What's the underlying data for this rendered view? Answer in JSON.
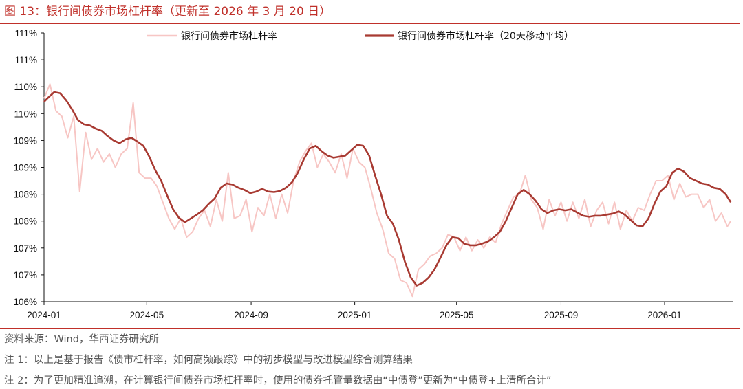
{
  "header": {
    "title": "图 13：银行间债券市场杠杆率（更新至 2026 年 3 月 20 日）"
  },
  "footer": {
    "source": "资料来源：Wind，华西证券研究所",
    "note1": "注 1：以上是基于报告《债市杠杆率，如何高频跟踪》中的初步模型与改进模型综合测算结果",
    "note2": "注 2：为了更加精准追溯，在计算银行间债券市场杠杆率时，使用的债券托管量数据由“中债登”更新为“中债登+上清所合计”"
  },
  "colors": {
    "accent": "#c0302a",
    "daily": "#f7c6c4",
    "ma20": "#a83a32"
  },
  "chart_data": {
    "type": "line",
    "title": "",
    "xlabel": "",
    "ylabel": "",
    "x_ticks": [
      "2024-01",
      "2024-05",
      "2024-09",
      "2025-01",
      "2025-05",
      "2025-09",
      "2026-01"
    ],
    "y_ticks": [
      "106%",
      "107%",
      "107%",
      "108%",
      "108%",
      "109%",
      "109%",
      "110%",
      "110%",
      "111%",
      "111%"
    ],
    "ylim": [
      106.0,
      111.0
    ],
    "x_range": [
      "2024-01-01",
      "2026-03-20"
    ],
    "grid": false,
    "legend_position": "top",
    "series": [
      {
        "name": "银行间债券市场杠杆率",
        "style": "light-line",
        "points": [
          [
            "2024-01-01",
            109.78
          ],
          [
            "2024-01-08",
            110.05
          ],
          [
            "2024-01-15",
            109.55
          ],
          [
            "2024-01-22",
            109.45
          ],
          [
            "2024-01-29",
            109.05
          ],
          [
            "2024-02-05",
            109.45
          ],
          [
            "2024-02-12",
            108.05
          ],
          [
            "2024-02-19",
            109.15
          ],
          [
            "2024-02-26",
            108.65
          ],
          [
            "2024-03-04",
            108.85
          ],
          [
            "2024-03-11",
            108.6
          ],
          [
            "2024-03-18",
            108.75
          ],
          [
            "2024-03-25",
            108.5
          ],
          [
            "2024-04-01",
            108.75
          ],
          [
            "2024-04-08",
            108.85
          ],
          [
            "2024-04-15",
            109.7
          ],
          [
            "2024-04-22",
            108.4
          ],
          [
            "2024-04-29",
            108.3
          ],
          [
            "2024-05-06",
            108.3
          ],
          [
            "2024-05-13",
            108.15
          ],
          [
            "2024-05-20",
            107.85
          ],
          [
            "2024-05-27",
            107.55
          ],
          [
            "2024-06-03",
            107.35
          ],
          [
            "2024-06-10",
            107.55
          ],
          [
            "2024-06-17",
            107.2
          ],
          [
            "2024-06-24",
            107.3
          ],
          [
            "2024-07-01",
            107.55
          ],
          [
            "2024-07-08",
            107.7
          ],
          [
            "2024-07-15",
            107.4
          ],
          [
            "2024-07-22",
            107.9
          ],
          [
            "2024-07-29",
            107.5
          ],
          [
            "2024-08-05",
            108.4
          ],
          [
            "2024-08-12",
            107.55
          ],
          [
            "2024-08-19",
            107.6
          ],
          [
            "2024-08-26",
            107.9
          ],
          [
            "2024-09-02",
            107.3
          ],
          [
            "2024-09-09",
            107.75
          ],
          [
            "2024-09-16",
            107.6
          ],
          [
            "2024-09-23",
            108.0
          ],
          [
            "2024-09-30",
            107.55
          ],
          [
            "2024-10-07",
            108.0
          ],
          [
            "2024-10-14",
            107.65
          ],
          [
            "2024-10-21",
            108.25
          ],
          [
            "2024-10-28",
            108.6
          ],
          [
            "2024-11-04",
            108.8
          ],
          [
            "2024-11-11",
            108.95
          ],
          [
            "2024-11-18",
            108.5
          ],
          [
            "2024-11-25",
            108.75
          ],
          [
            "2024-12-02",
            108.6
          ],
          [
            "2024-12-09",
            108.4
          ],
          [
            "2024-12-16",
            108.75
          ],
          [
            "2024-12-23",
            108.3
          ],
          [
            "2024-12-30",
            108.85
          ],
          [
            "2025-01-06",
            108.6
          ],
          [
            "2025-01-13",
            108.5
          ],
          [
            "2025-01-20",
            108.1
          ],
          [
            "2025-01-27",
            107.65
          ],
          [
            "2025-02-03",
            107.35
          ],
          [
            "2025-02-10",
            106.9
          ],
          [
            "2025-02-17",
            106.8
          ],
          [
            "2025-02-24",
            106.4
          ],
          [
            "2025-03-03",
            106.35
          ],
          [
            "2025-03-10",
            106.1
          ],
          [
            "2025-03-17",
            106.6
          ],
          [
            "2025-03-24",
            106.7
          ],
          [
            "2025-03-31",
            106.85
          ],
          [
            "2025-04-07",
            106.9
          ],
          [
            "2025-04-14",
            107.0
          ],
          [
            "2025-04-21",
            107.25
          ],
          [
            "2025-04-28",
            107.2
          ],
          [
            "2025-05-05",
            106.95
          ],
          [
            "2025-05-12",
            107.2
          ],
          [
            "2025-05-19",
            106.95
          ],
          [
            "2025-05-26",
            107.15
          ],
          [
            "2025-06-02",
            107.0
          ],
          [
            "2025-06-09",
            107.2
          ],
          [
            "2025-06-16",
            107.1
          ],
          [
            "2025-06-23",
            107.45
          ],
          [
            "2025-06-30",
            107.7
          ],
          [
            "2025-07-07",
            107.95
          ],
          [
            "2025-07-14",
            108.0
          ],
          [
            "2025-07-21",
            108.35
          ],
          [
            "2025-07-28",
            107.9
          ],
          [
            "2025-08-04",
            107.75
          ],
          [
            "2025-08-11",
            107.35
          ],
          [
            "2025-08-18",
            107.9
          ],
          [
            "2025-08-25",
            107.6
          ],
          [
            "2025-09-01",
            107.85
          ],
          [
            "2025-09-08",
            107.5
          ],
          [
            "2025-09-15",
            107.85
          ],
          [
            "2025-09-22",
            107.55
          ],
          [
            "2025-09-29",
            107.9
          ],
          [
            "2025-10-06",
            107.4
          ],
          [
            "2025-10-13",
            107.7
          ],
          [
            "2025-10-20",
            107.85
          ],
          [
            "2025-10-27",
            107.45
          ],
          [
            "2025-11-03",
            107.85
          ],
          [
            "2025-11-10",
            107.35
          ],
          [
            "2025-11-17",
            107.7
          ],
          [
            "2025-11-24",
            107.5
          ],
          [
            "2025-12-01",
            107.75
          ],
          [
            "2025-12-08",
            107.7
          ],
          [
            "2025-12-15",
            108.0
          ],
          [
            "2025-12-22",
            108.25
          ],
          [
            "2025-12-29",
            108.25
          ],
          [
            "2026-01-05",
            108.35
          ],
          [
            "2026-01-12",
            107.9
          ],
          [
            "2026-01-19",
            108.2
          ],
          [
            "2026-01-26",
            107.95
          ],
          [
            "2026-02-02",
            108.0
          ],
          [
            "2026-02-09",
            108.0
          ],
          [
            "2026-02-16",
            107.75
          ],
          [
            "2026-02-23",
            107.9
          ],
          [
            "2026-03-02",
            107.5
          ],
          [
            "2026-03-09",
            107.65
          ],
          [
            "2026-03-16",
            107.4
          ],
          [
            "2026-03-20",
            107.5
          ]
        ]
      },
      {
        "name": "银行间债券市场杠杆率（20天移动平均）",
        "style": "dark-line",
        "points": [
          [
            "2024-01-01",
            109.72
          ],
          [
            "2024-01-06",
            109.8
          ],
          [
            "2024-01-13",
            109.9
          ],
          [
            "2024-01-20",
            109.88
          ],
          [
            "2024-01-27",
            109.75
          ],
          [
            "2024-02-03",
            109.58
          ],
          [
            "2024-02-10",
            109.38
          ],
          [
            "2024-02-17",
            109.3
          ],
          [
            "2024-02-24",
            109.28
          ],
          [
            "2024-03-02",
            109.22
          ],
          [
            "2024-03-09",
            109.18
          ],
          [
            "2024-03-16",
            109.08
          ],
          [
            "2024-03-23",
            109.0
          ],
          [
            "2024-03-30",
            108.95
          ],
          [
            "2024-04-06",
            109.02
          ],
          [
            "2024-04-13",
            109.05
          ],
          [
            "2024-04-20",
            108.98
          ],
          [
            "2024-04-27",
            108.9
          ],
          [
            "2024-05-04",
            108.7
          ],
          [
            "2024-05-11",
            108.45
          ],
          [
            "2024-05-18",
            108.25
          ],
          [
            "2024-05-25",
            107.98
          ],
          [
            "2024-06-01",
            107.72
          ],
          [
            "2024-06-08",
            107.56
          ],
          [
            "2024-06-15",
            107.48
          ],
          [
            "2024-06-22",
            107.55
          ],
          [
            "2024-06-29",
            107.62
          ],
          [
            "2024-07-06",
            107.7
          ],
          [
            "2024-07-13",
            107.82
          ],
          [
            "2024-07-20",
            107.92
          ],
          [
            "2024-07-27",
            108.12
          ],
          [
            "2024-08-03",
            108.2
          ],
          [
            "2024-08-10",
            108.18
          ],
          [
            "2024-08-17",
            108.12
          ],
          [
            "2024-08-24",
            108.08
          ],
          [
            "2024-08-31",
            108.02
          ],
          [
            "2024-09-07",
            108.05
          ],
          [
            "2024-09-14",
            108.1
          ],
          [
            "2024-09-21",
            108.05
          ],
          [
            "2024-09-28",
            108.04
          ],
          [
            "2024-10-05",
            108.06
          ],
          [
            "2024-10-12",
            108.12
          ],
          [
            "2024-10-19",
            108.22
          ],
          [
            "2024-10-26",
            108.4
          ],
          [
            "2024-11-02",
            108.65
          ],
          [
            "2024-11-09",
            108.85
          ],
          [
            "2024-11-16",
            108.9
          ],
          [
            "2024-11-23",
            108.8
          ],
          [
            "2024-11-30",
            108.72
          ],
          [
            "2024-12-07",
            108.68
          ],
          [
            "2024-12-14",
            108.7
          ],
          [
            "2024-12-21",
            108.72
          ],
          [
            "2024-12-28",
            108.82
          ],
          [
            "2025-01-04",
            108.92
          ],
          [
            "2025-01-11",
            108.9
          ],
          [
            "2025-01-18",
            108.72
          ],
          [
            "2025-01-25",
            108.35
          ],
          [
            "2025-02-01",
            108.0
          ],
          [
            "2025-02-08",
            107.6
          ],
          [
            "2025-02-15",
            107.45
          ],
          [
            "2025-02-22",
            107.15
          ],
          [
            "2025-03-01",
            106.75
          ],
          [
            "2025-03-08",
            106.45
          ],
          [
            "2025-03-15",
            106.3
          ],
          [
            "2025-03-22",
            106.35
          ],
          [
            "2025-03-29",
            106.45
          ],
          [
            "2025-04-05",
            106.6
          ],
          [
            "2025-04-12",
            106.82
          ],
          [
            "2025-04-19",
            107.05
          ],
          [
            "2025-04-26",
            107.2
          ],
          [
            "2025-05-03",
            107.18
          ],
          [
            "2025-05-10",
            107.08
          ],
          [
            "2025-05-17",
            107.05
          ],
          [
            "2025-05-24",
            107.05
          ],
          [
            "2025-05-31",
            107.08
          ],
          [
            "2025-06-07",
            107.12
          ],
          [
            "2025-06-14",
            107.2
          ],
          [
            "2025-06-21",
            107.3
          ],
          [
            "2025-06-28",
            107.5
          ],
          [
            "2025-07-05",
            107.75
          ],
          [
            "2025-07-12",
            108.0
          ],
          [
            "2025-07-19",
            108.08
          ],
          [
            "2025-07-26",
            108.0
          ],
          [
            "2025-08-02",
            107.88
          ],
          [
            "2025-08-09",
            107.72
          ],
          [
            "2025-08-16",
            107.65
          ],
          [
            "2025-08-23",
            107.7
          ],
          [
            "2025-08-30",
            107.72
          ],
          [
            "2025-09-06",
            107.7
          ],
          [
            "2025-09-13",
            107.72
          ],
          [
            "2025-09-20",
            107.66
          ],
          [
            "2025-09-27",
            107.6
          ],
          [
            "2025-10-04",
            107.58
          ],
          [
            "2025-10-11",
            107.6
          ],
          [
            "2025-10-18",
            107.6
          ],
          [
            "2025-10-25",
            107.62
          ],
          [
            "2025-11-01",
            107.64
          ],
          [
            "2025-11-08",
            107.68
          ],
          [
            "2025-11-15",
            107.62
          ],
          [
            "2025-11-22",
            107.52
          ],
          [
            "2025-11-29",
            107.42
          ],
          [
            "2025-12-06",
            107.4
          ],
          [
            "2025-12-13",
            107.55
          ],
          [
            "2025-12-20",
            107.82
          ],
          [
            "2025-12-27",
            108.05
          ],
          [
            "2026-01-03",
            108.15
          ],
          [
            "2026-01-10",
            108.4
          ],
          [
            "2026-01-17",
            108.48
          ],
          [
            "2026-01-24",
            108.42
          ],
          [
            "2026-01-31",
            108.3
          ],
          [
            "2026-02-07",
            108.25
          ],
          [
            "2026-02-14",
            108.2
          ],
          [
            "2026-02-21",
            108.18
          ],
          [
            "2026-02-28",
            108.12
          ],
          [
            "2026-03-07",
            108.1
          ],
          [
            "2026-03-14",
            108.0
          ],
          [
            "2026-03-20",
            107.85
          ]
        ]
      }
    ]
  }
}
